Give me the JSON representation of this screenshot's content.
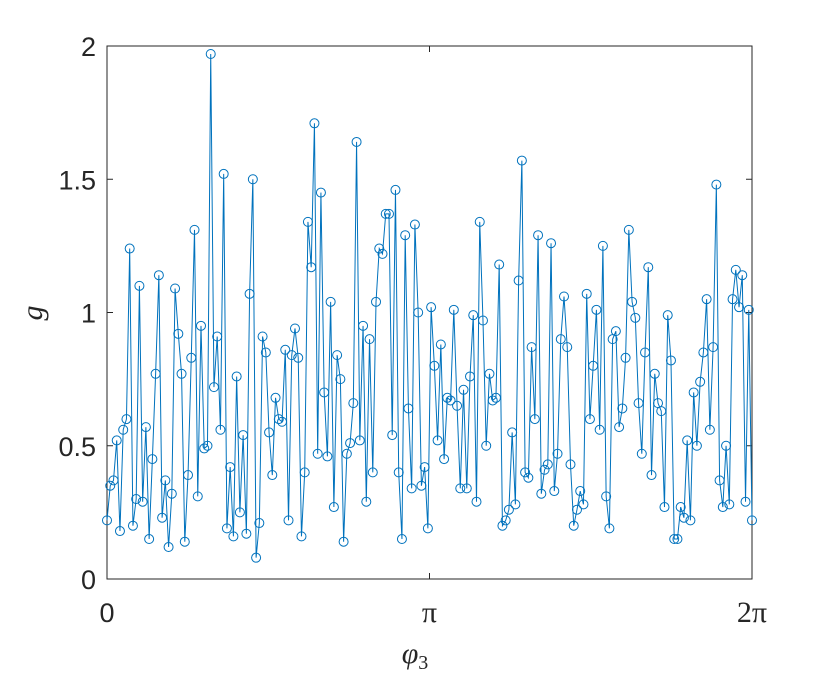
{
  "chart_data": {
    "type": "line",
    "xlabel": "φ",
    "xlabel_subscript": "3",
    "ylabel": "g",
    "xlim": [
      0,
      6.283185307179586
    ],
    "ylim": [
      0,
      2
    ],
    "x_ticks": [
      {
        "value": 0,
        "label": "0"
      },
      {
        "value": 3.141592653589793,
        "label": "π"
      },
      {
        "value": 6.283185307179586,
        "label": "2π"
      }
    ],
    "y_ticks": [
      {
        "value": 0,
        "label": "0"
      },
      {
        "value": 0.5,
        "label": "0.5"
      },
      {
        "value": 1,
        "label": "1"
      },
      {
        "value": 1.5,
        "label": "1.5"
      },
      {
        "value": 2,
        "label": "2"
      }
    ],
    "grid": false,
    "legend": "none",
    "marker": "circle",
    "line_color": "#0072BD",
    "series": [
      {
        "values": [
          0.22,
          0.35,
          0.37,
          0.52,
          0.18,
          0.56,
          0.6,
          1.24,
          0.2,
          0.3,
          1.1,
          0.29,
          0.57,
          0.15,
          0.45,
          0.77,
          1.14,
          0.23,
          0.37,
          0.12,
          0.32,
          1.09,
          0.92,
          0.77,
          0.14,
          0.39,
          0.83,
          1.31,
          0.31,
          0.95,
          0.49,
          0.5,
          1.97,
          0.72,
          0.91,
          0.56,
          1.52,
          0.19,
          0.42,
          0.16,
          0.76,
          0.25,
          0.54,
          0.17,
          1.07,
          1.5,
          0.08,
          0.21,
          0.91,
          0.85,
          0.55,
          0.39,
          0.68,
          0.6,
          0.59,
          0.86,
          0.22,
          0.84,
          0.94,
          0.83,
          0.16,
          0.4,
          1.34,
          1.17,
          1.71,
          0.47,
          1.45,
          0.7,
          0.46,
          1.04,
          0.27,
          0.84,
          0.75,
          0.14,
          0.47,
          0.51,
          0.66,
          1.64,
          0.52,
          0.95,
          0.29,
          0.9,
          0.4,
          1.04,
          1.24,
          1.22,
          1.37,
          1.37,
          0.54,
          1.46,
          0.4,
          0.15,
          1.29,
          0.64,
          0.34,
          1.33,
          1.0,
          0.35,
          0.42,
          0.19,
          1.02,
          0.8,
          0.52,
          0.88,
          0.45,
          0.68,
          0.67,
          1.01,
          0.65,
          0.34,
          0.71,
          0.34,
          0.76,
          0.99,
          0.29,
          1.34,
          0.97,
          0.5,
          0.77,
          0.67,
          0.68,
          1.18,
          0.2,
          0.22,
          0.26,
          0.55,
          0.28,
          1.12,
          1.57,
          0.4,
          0.38,
          0.87,
          0.6,
          1.29,
          0.32,
          0.41,
          0.43,
          1.26,
          0.33,
          0.47,
          0.9,
          1.06,
          0.87,
          0.43,
          0.2,
          0.26,
          0.33,
          0.28,
          1.07,
          0.6,
          0.8,
          1.01,
          0.56,
          1.25,
          0.31,
          0.19,
          0.9,
          0.93,
          0.57,
          0.64,
          0.83,
          1.31,
          1.04,
          0.98,
          0.66,
          0.47,
          0.85,
          1.17,
          0.39,
          0.77,
          0.66,
          0.63,
          0.27,
          0.99,
          0.82,
          0.15,
          0.15,
          0.27,
          0.23,
          0.52,
          0.22,
          0.7,
          0.5,
          0.74,
          0.85,
          1.05,
          0.56,
          0.87,
          1.48,
          0.37,
          0.27,
          0.5,
          0.28,
          1.05,
          1.16,
          1.02,
          1.14,
          0.29,
          1.01,
          0.22
        ]
      }
    ]
  }
}
